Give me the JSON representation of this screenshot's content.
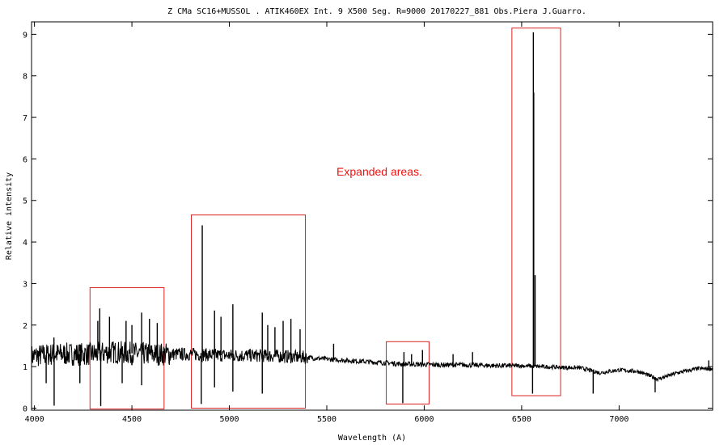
{
  "chart_data": {
    "type": "line",
    "title": "Z CMa  SC16+MUSSOL . ATIK460EX  Int. 9 X500 Seg.  R=9000   20170227_881  Obs.Piera  J.Guarro.",
    "xlabel": "Wavelength (A)",
    "ylabel": "Relative intensity",
    "xlim": [
      3985,
      7480
    ],
    "ylim": [
      -0.05,
      9.3
    ],
    "x_ticks": [
      4000,
      4500,
      5000,
      5500,
      6000,
      6500,
      7000
    ],
    "y_ticks": [
      0,
      1,
      2,
      3,
      4,
      5,
      6,
      7,
      8,
      9
    ],
    "grid": false,
    "line_color": "#000000",
    "continuum": [
      [
        3985,
        1.25
      ],
      [
        4100,
        1.3
      ],
      [
        4200,
        1.3
      ],
      [
        4300,
        1.3
      ],
      [
        4400,
        1.35
      ],
      [
        4500,
        1.32
      ],
      [
        4600,
        1.3
      ],
      [
        4700,
        1.3
      ],
      [
        4800,
        1.3
      ],
      [
        4900,
        1.28
      ],
      [
        5000,
        1.27
      ],
      [
        5100,
        1.27
      ],
      [
        5200,
        1.26
      ],
      [
        5300,
        1.24
      ],
      [
        5400,
        1.22
      ],
      [
        5500,
        1.18
      ],
      [
        5600,
        1.15
      ],
      [
        5700,
        1.12
      ],
      [
        5800,
        1.09
      ],
      [
        5900,
        1.06
      ],
      [
        6000,
        1.05
      ],
      [
        6100,
        1.04
      ],
      [
        6200,
        1.04
      ],
      [
        6300,
        1.03
      ],
      [
        6400,
        1.02
      ],
      [
        6500,
        1.02
      ],
      [
        6600,
        1.0
      ],
      [
        6700,
        0.98
      ],
      [
        6800,
        0.97
      ],
      [
        6900,
        0.85
      ],
      [
        7000,
        0.92
      ],
      [
        7100,
        0.88
      ],
      [
        7200,
        0.7
      ],
      [
        7300,
        0.85
      ],
      [
        7400,
        0.95
      ],
      [
        7480,
        0.95
      ]
    ],
    "features": [
      {
        "x": 4101,
        "y": 0.06
      },
      {
        "x": 4340,
        "y": 0.05
      },
      {
        "x": 4335,
        "y": 2.4
      },
      {
        "x": 4325,
        "y": 2.1
      },
      {
        "x": 4550,
        "y": 2.3
      },
      {
        "x": 4385,
        "y": 2.2
      },
      {
        "x": 4470,
        "y": 2.1
      },
      {
        "x": 4500,
        "y": 2.0
      },
      {
        "x": 4590,
        "y": 2.15
      },
      {
        "x": 4630,
        "y": 2.05
      },
      {
        "x": 4100,
        "y": 1.7
      },
      {
        "x": 4060,
        "y": 0.6
      },
      {
        "x": 4233,
        "y": 0.6
      },
      {
        "x": 4450,
        "y": 0.6
      },
      {
        "x": 4550,
        "y": 0.55
      },
      {
        "x": 4861,
        "y": 4.4
      },
      {
        "x": 4856,
        "y": 0.1
      },
      {
        "x": 4924,
        "y": 2.35
      },
      {
        "x": 4924,
        "y": 0.5
      },
      {
        "x": 4957,
        "y": 2.2
      },
      {
        "x": 5018,
        "y": 2.5
      },
      {
        "x": 5018,
        "y": 0.4
      },
      {
        "x": 5169,
        "y": 2.3
      },
      {
        "x": 5169,
        "y": 0.35
      },
      {
        "x": 5197,
        "y": 2.0
      },
      {
        "x": 5234,
        "y": 1.95
      },
      {
        "x": 5276,
        "y": 2.1
      },
      {
        "x": 5316,
        "y": 2.15
      },
      {
        "x": 5363,
        "y": 1.9
      },
      {
        "x": 5535,
        "y": 1.55
      },
      {
        "x": 5890,
        "y": 0.12
      },
      {
        "x": 5896,
        "y": 1.35
      },
      {
        "x": 5935,
        "y": 1.3
      },
      {
        "x": 5991,
        "y": 1.4
      },
      {
        "x": 6148,
        "y": 1.3
      },
      {
        "x": 6248,
        "y": 1.35
      },
      {
        "x": 6560,
        "y": 9.05
      },
      {
        "x": 6562,
        "y": 7.6
      },
      {
        "x": 6556,
        "y": 0.35
      },
      {
        "x": 6569,
        "y": 3.2
      },
      {
        "x": 6867,
        "y": 0.35
      },
      {
        "x": 7185,
        "y": 0.38
      },
      {
        "x": 7460,
        "y": 1.15
      }
    ],
    "annotation": "Expanded areas.",
    "annotation_color": "#ee1111",
    "annotation_position": {
      "x": 5550,
      "y": 5.6
    },
    "expanded_areas": [
      {
        "x0": 4285,
        "x1": 4665,
        "y0": -0.02,
        "y1": 2.9
      },
      {
        "x0": 4805,
        "x1": 5390,
        "y0": 0.0,
        "y1": 4.65
      },
      {
        "x0": 5805,
        "x1": 6025,
        "y0": 0.1,
        "y1": 1.6
      },
      {
        "x0": 6450,
        "x1": 6700,
        "y0": 0.3,
        "y1": 9.15
      }
    ],
    "box_color": "#dd2222"
  }
}
